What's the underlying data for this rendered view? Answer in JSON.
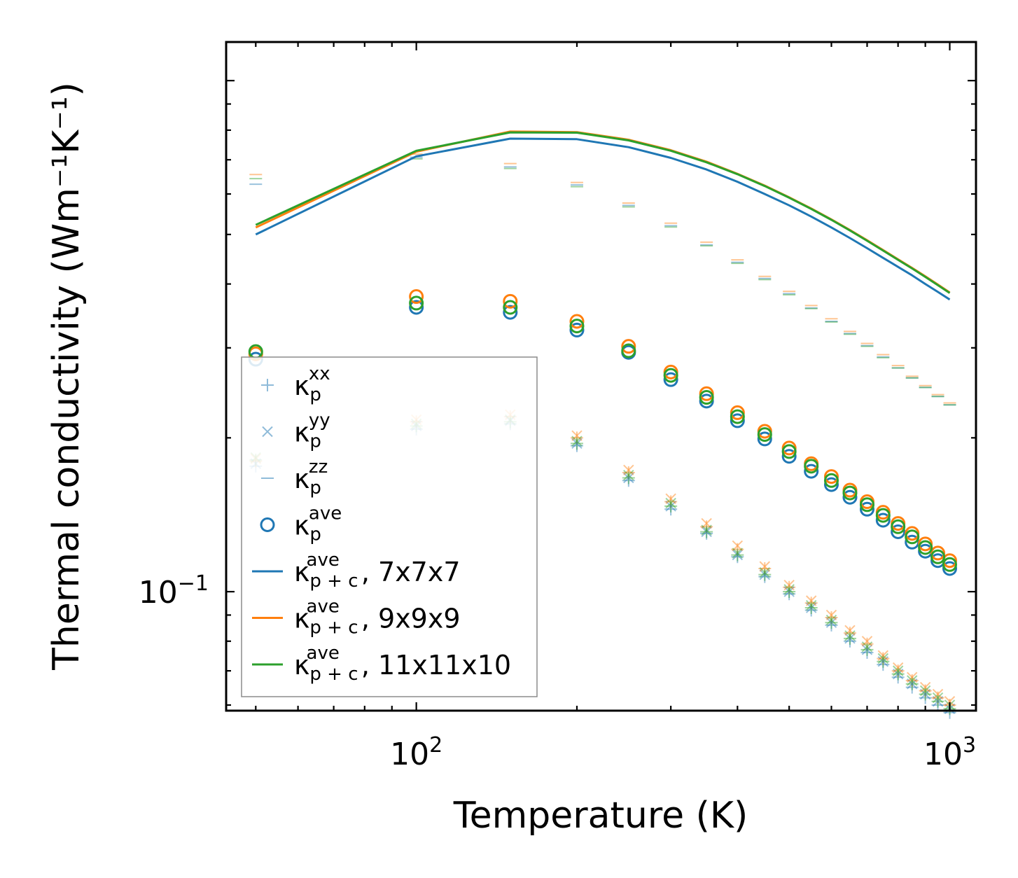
{
  "chart_data": {
    "type": "scatter",
    "title": "",
    "xlabel": "Temperature (K)",
    "ylabel": "Thermal conductivity (Wm⁻¹K⁻¹)",
    "xscale": "log",
    "yscale": "log",
    "xlim": [
      44,
      1120
    ],
    "ylim": [
      0.0585,
      1.19
    ],
    "x_ticks": [
      {
        "value": 100,
        "base": "10",
        "exp": "2"
      },
      {
        "value": 1000,
        "base": "10",
        "exp": "3"
      }
    ],
    "y_ticks": [
      {
        "value": 0.1,
        "base": "10",
        "exp": "−1"
      }
    ],
    "temperatures": [
      50,
      100,
      150,
      200,
      250,
      300,
      350,
      400,
      450,
      500,
      550,
      600,
      650,
      700,
      750,
      800,
      850,
      900,
      950,
      1000
    ],
    "series": [
      {
        "name": "κp^xx, 7x7x7",
        "marker": "plus",
        "color": "#1f77b4",
        "alpha": 0.45,
        "values": [
          0.176,
          0.208,
          0.213,
          0.193,
          0.165,
          0.145,
          0.13,
          0.117,
          0.107,
          0.099,
          0.092,
          0.086,
          0.08,
          0.076,
          0.072,
          0.068,
          0.065,
          0.062,
          0.06,
          0.058
        ]
      },
      {
        "name": "κp^yy, 7x7x7",
        "marker": "x",
        "color": "#1f77b4",
        "alpha": 0.45,
        "values": [
          0.178,
          0.211,
          0.216,
          0.195,
          0.167,
          0.147,
          0.131,
          0.118,
          0.108,
          0.1,
          0.093,
          0.087,
          0.081,
          0.077,
          0.073,
          0.069,
          0.066,
          0.063,
          0.061,
          0.059
        ]
      },
      {
        "name": "κp^zz, 7x7x7",
        "marker": "dash",
        "color": "#1f77b4",
        "alpha": 0.45,
        "values": [
          0.627,
          0.708,
          0.678,
          0.625,
          0.57,
          0.52,
          0.477,
          0.441,
          0.41,
          0.383,
          0.359,
          0.338,
          0.32,
          0.303,
          0.288,
          0.274,
          0.262,
          0.251,
          0.241,
          0.232
        ]
      },
      {
        "name": "κp^ave, 7x7x7",
        "marker": "circle",
        "color": "#1f77b4",
        "alpha": 1,
        "values": [
          0.285,
          0.36,
          0.352,
          0.325,
          0.294,
          0.26,
          0.236,
          0.216,
          0.199,
          0.184,
          0.172,
          0.162,
          0.153,
          0.145,
          0.138,
          0.131,
          0.125,
          0.12,
          0.115,
          0.111
        ]
      },
      {
        "name": "κp^xx, 9x9x9",
        "marker": "plus",
        "color": "#ff7f0e",
        "alpha": 0.45,
        "values": [
          0.18,
          0.215,
          0.22,
          0.2,
          0.171,
          0.15,
          0.134,
          0.121,
          0.111,
          0.102,
          0.095,
          0.089,
          0.083,
          0.079,
          0.074,
          0.07,
          0.067,
          0.064,
          0.062,
          0.06
        ]
      },
      {
        "name": "κp^yy, 9x9x9",
        "marker": "x",
        "color": "#ff7f0e",
        "alpha": 0.45,
        "values": [
          0.182,
          0.217,
          0.222,
          0.202,
          0.173,
          0.152,
          0.136,
          0.123,
          0.112,
          0.103,
          0.096,
          0.09,
          0.084,
          0.08,
          0.075,
          0.071,
          0.068,
          0.065,
          0.063,
          0.061
        ]
      },
      {
        "name": "κp^zz, 9x9x9",
        "marker": "dash",
        "color": "#ff7f0e",
        "alpha": 0.45,
        "values": [
          0.655,
          0.718,
          0.688,
          0.632,
          0.576,
          0.526,
          0.483,
          0.446,
          0.414,
          0.387,
          0.363,
          0.342,
          0.323,
          0.306,
          0.291,
          0.277,
          0.264,
          0.253,
          0.243,
          0.234
        ]
      },
      {
        "name": "κp^ave, 9x9x9",
        "marker": "circle",
        "color": "#ff7f0e",
        "alpha": 1,
        "values": [
          0.292,
          0.378,
          0.37,
          0.338,
          0.302,
          0.269,
          0.244,
          0.224,
          0.206,
          0.191,
          0.178,
          0.168,
          0.158,
          0.15,
          0.143,
          0.136,
          0.13,
          0.124,
          0.119,
          0.115
        ]
      },
      {
        "name": "κp^xx, 11x11x10",
        "marker": "plus",
        "color": "#2ca02c",
        "alpha": 0.45,
        "values": [
          0.181,
          0.211,
          0.215,
          0.195,
          0.167,
          0.147,
          0.131,
          0.118,
          0.108,
          0.1,
          0.093,
          0.087,
          0.081,
          0.077,
          0.073,
          0.069,
          0.066,
          0.063,
          0.061,
          0.059
        ]
      },
      {
        "name": "κp^yy, 11x11x10",
        "marker": "x",
        "color": "#2ca02c",
        "alpha": 0.45,
        "values": [
          0.183,
          0.213,
          0.217,
          0.197,
          0.169,
          0.149,
          0.132,
          0.119,
          0.109,
          0.101,
          0.094,
          0.088,
          0.082,
          0.078,
          0.074,
          0.07,
          0.067,
          0.064,
          0.062,
          0.06
        ]
      },
      {
        "name": "κp^zz, 11x11x10",
        "marker": "dash",
        "color": "#2ca02c",
        "alpha": 0.45,
        "values": [
          0.643,
          0.703,
          0.673,
          0.62,
          0.566,
          0.517,
          0.475,
          0.439,
          0.408,
          0.381,
          0.358,
          0.337,
          0.319,
          0.302,
          0.287,
          0.274,
          0.262,
          0.251,
          0.241,
          0.232
        ]
      },
      {
        "name": "κp^ave, 11x11x10",
        "marker": "circle",
        "color": "#2ca02c",
        "alpha": 1,
        "values": [
          0.295,
          0.367,
          0.36,
          0.331,
          0.296,
          0.265,
          0.24,
          0.22,
          0.203,
          0.188,
          0.176,
          0.165,
          0.156,
          0.148,
          0.141,
          0.134,
          0.128,
          0.122,
          0.117,
          0.113
        ]
      },
      {
        "name": "κp+c^ave, 7x7x7",
        "marker": "line",
        "color": "#1f77b4",
        "alpha": 1,
        "values": [
          0.5,
          0.711,
          0.77,
          0.768,
          0.741,
          0.706,
          0.67,
          0.634,
          0.6,
          0.57,
          0.542,
          0.516,
          0.492,
          0.47,
          0.45,
          0.432,
          0.416,
          0.4,
          0.386,
          0.373
        ]
      },
      {
        "name": "κp+c^ave, 9x9x9",
        "marker": "line",
        "color": "#ff7f0e",
        "alpha": 1,
        "values": [
          0.516,
          0.726,
          0.795,
          0.793,
          0.766,
          0.731,
          0.694,
          0.657,
          0.623,
          0.591,
          0.562,
          0.535,
          0.51,
          0.487,
          0.466,
          0.447,
          0.43,
          0.414,
          0.399,
          0.385
        ]
      },
      {
        "name": "κp+c^ave, 11x11x10",
        "marker": "line",
        "color": "#2ca02c",
        "alpha": 1,
        "values": [
          0.522,
          0.729,
          0.792,
          0.791,
          0.764,
          0.729,
          0.692,
          0.656,
          0.622,
          0.59,
          0.561,
          0.534,
          0.509,
          0.486,
          0.465,
          0.446,
          0.429,
          0.413,
          0.398,
          0.384
        ]
      }
    ],
    "legend": {
      "position": "lower-left",
      "entries": [
        {
          "marker": "plus",
          "color": "#1f77b4",
          "alpha": 0.5,
          "symbol": "κ",
          "sub": "p",
          "sup": "xx",
          "suffix": ""
        },
        {
          "marker": "x",
          "color": "#1f77b4",
          "alpha": 0.5,
          "symbol": "κ",
          "sub": "p",
          "sup": "yy",
          "suffix": ""
        },
        {
          "marker": "dash",
          "color": "#1f77b4",
          "alpha": 0.5,
          "symbol": "κ",
          "sub": "p",
          "sup": "zz",
          "suffix": ""
        },
        {
          "marker": "circle",
          "color": "#1f77b4",
          "alpha": 1,
          "symbol": "κ",
          "sub": "p",
          "sup": "ave",
          "suffix": ""
        },
        {
          "marker": "line",
          "color": "#1f77b4",
          "alpha": 1,
          "symbol": "κ",
          "sub": "p + c",
          "sup": "ave",
          "suffix": ", 7x7x7"
        },
        {
          "marker": "line",
          "color": "#ff7f0e",
          "alpha": 1,
          "symbol": "κ",
          "sub": "p + c",
          "sup": "ave",
          "suffix": ", 9x9x9"
        },
        {
          "marker": "line",
          "color": "#2ca02c",
          "alpha": 1,
          "symbol": "κ",
          "sub": "p + c",
          "sup": "ave",
          "suffix": ", 11x11x10"
        }
      ]
    }
  }
}
